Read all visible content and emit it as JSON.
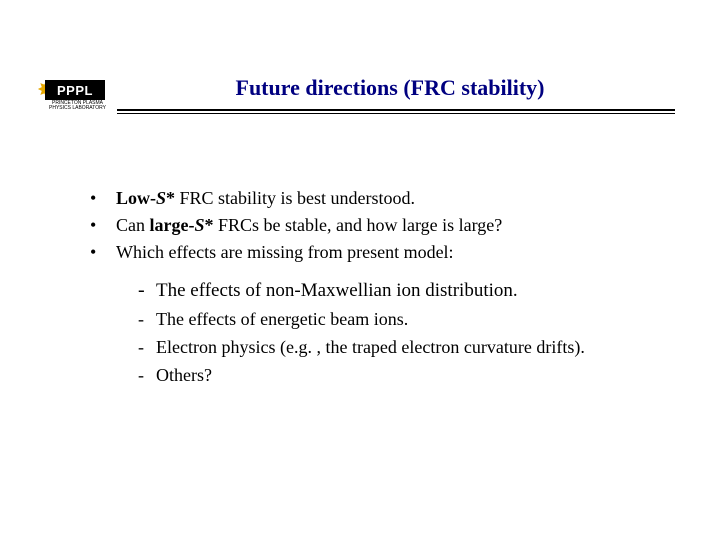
{
  "logo": {
    "text": "PPPL",
    "subtitle": "PRINCETON PLASMA\nPHYSICS LABORATORY",
    "star_glyph": "✸",
    "colors": {
      "bg": "#000000",
      "text": "#ffffff",
      "star": "#e6a800"
    }
  },
  "title": "Future directions (FRC stability)",
  "title_color": "#000080",
  "bullets": [
    {
      "prefix": "Low-",
      "var": "S",
      "suffix": "* FRC stability is best understood."
    },
    {
      "prefix": "Can ",
      "bold_prefix": "large-",
      "var": "S",
      "bold_suffix": "*",
      "suffix": " FRCs be stable, and how large is large?"
    },
    {
      "text": "Which effects are missing from present model:"
    }
  ],
  "sub_bullets": [
    "The effects of non-Maxwellian ion distribution.",
    "The effects of energetic beam ions.",
    "Electron physics (e.g. , the traped electron curvature drifts).",
    "Others?"
  ],
  "styling": {
    "body_font": "Times New Roman",
    "body_fontsize_pt": 18,
    "title_fontsize_pt": 22,
    "background_color": "#ffffff",
    "text_color": "#000000",
    "divider_color": "#000000"
  }
}
